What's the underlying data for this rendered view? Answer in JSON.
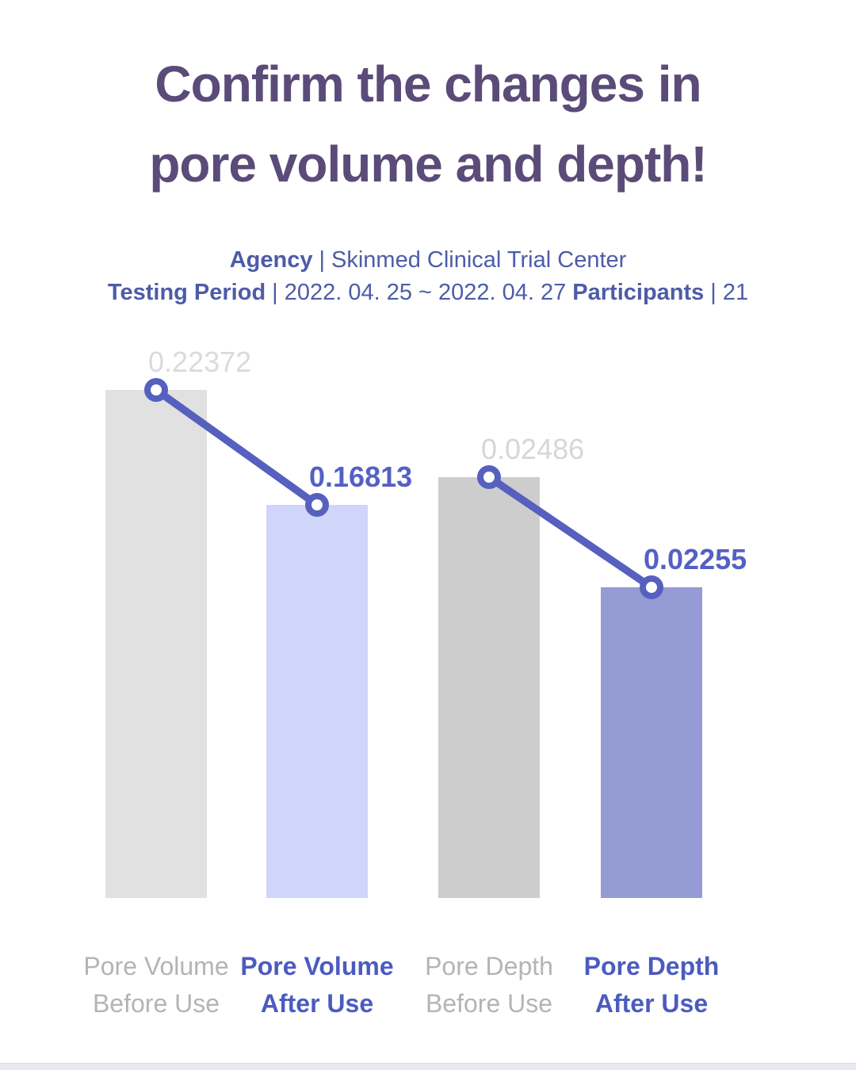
{
  "title": {
    "line1": "Confirm the changes in",
    "line2": "pore volume and depth!"
  },
  "study_info": {
    "agency_label": "Agency",
    "agency_separator": "|",
    "agency_value": "Skinmed Clinical Trial Center",
    "period_label": "Testing Period",
    "period_separator": "|",
    "period_value": "2022. 04. 25 ~ 2022. 04. 27",
    "participants_label": "Participants",
    "participants_separator": "|",
    "participants_value": "21"
  },
  "colors": {
    "title": "#5b4b78",
    "subtitle": "#4d5ca8",
    "footer_strip": "#e8e8f2"
  },
  "chart_data": {
    "type": "bar",
    "title": "",
    "xlabel": "",
    "ylabel": "",
    "axes_visible": false,
    "grid": false,
    "legend": false,
    "categories": [
      "Pore Volume Before Use",
      "Pore Volume After Use",
      "Pore Depth Before Use",
      "Pore Depth After Use"
    ],
    "category_lines": [
      [
        "Pore Volume",
        "Before Use"
      ],
      [
        "Pore Volume",
        "After Use"
      ],
      [
        "Pore Depth",
        "Before Use"
      ],
      [
        "Pore Depth",
        "After Use"
      ]
    ],
    "values": [
      0.22372,
      0.16813,
      0.02486,
      0.02255
    ],
    "value_labels": [
      "0.22372",
      "0.16813",
      "0.02486",
      "0.02255"
    ],
    "roles": [
      "before",
      "after",
      "before",
      "after"
    ],
    "connectors": [
      [
        0,
        1
      ],
      [
        2,
        3
      ]
    ],
    "colors": {
      "bar_fills": [
        "#e1e1e1",
        "#d0d6f9",
        "#cdcdcd",
        "#949bd5"
      ],
      "value_label_colors": [
        "#dadada",
        "#5560c4",
        "#d6d6d6",
        "#5560c4"
      ],
      "category_label_colors": [
        "#b4b4b6",
        "#4c5bbf",
        "#b4b4b6",
        "#4c5bbf"
      ],
      "trend_line": "#5560bf",
      "marker_fill": "#ffffff"
    }
  }
}
